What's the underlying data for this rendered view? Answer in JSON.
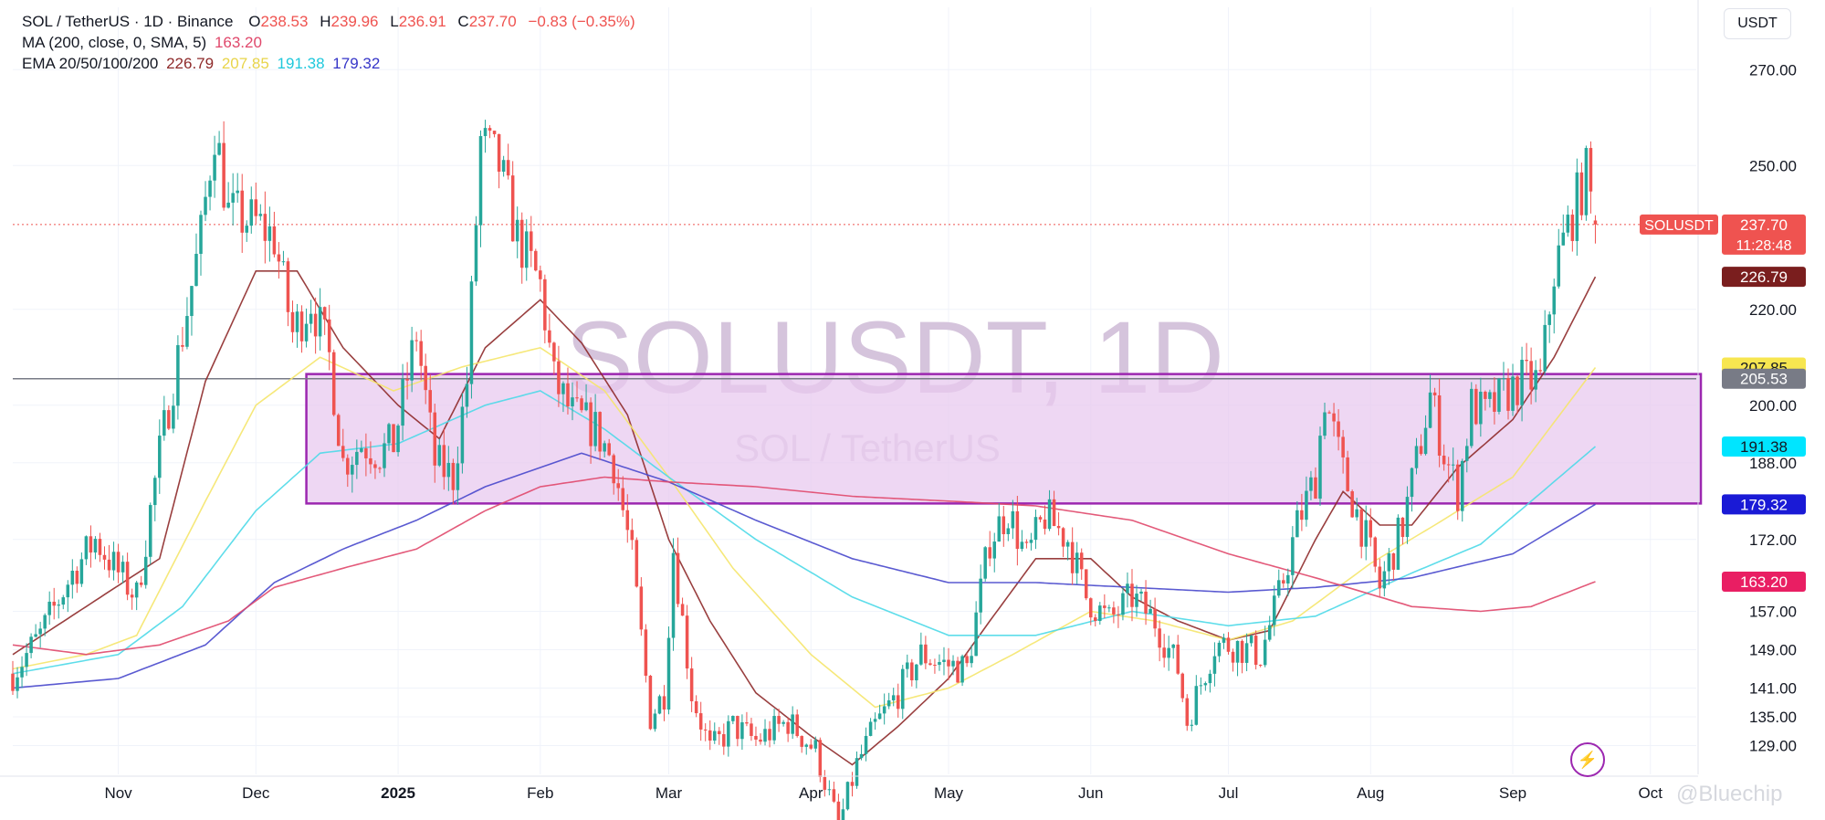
{
  "header": {
    "symbol": "SOL / TetherUS · 1D · Binance",
    "o_label": "O",
    "o": "238.53",
    "h_label": "H",
    "h": "239.96",
    "l_label": "L",
    "l": "236.91",
    "c_label": "C",
    "c": "237.70",
    "change": "−0.83 (−0.35%)",
    "ma_label": "MA (200, close, 0, SMA, 5)",
    "ma_value": "163.20",
    "ema_label": "EMA 20/50/100/200",
    "ema20": "226.79",
    "ema50": "207.85",
    "ema100": "191.38",
    "ema200": "179.32"
  },
  "unit": "USDT",
  "watermark": {
    "main": "SOLUSDT, 1D",
    "sub": "SOL / TetherUS"
  },
  "credit": "@Bluechip",
  "colors": {
    "up": "#26a69a",
    "down": "#ef5350",
    "ema20": "#8e2a2a",
    "ema50": "#f5e66b",
    "ema100": "#4dd9e8",
    "ema200": "#4848cc",
    "ma200": "#e0486b",
    "zone_fill": "#e8c9ef",
    "zone_border": "#9c27b0",
    "grid": "#f0f3fa"
  },
  "chart_data": {
    "type": "candlestick",
    "title": "SOL / TetherUS · 1D · Binance",
    "ylim": [
      123,
      283
    ],
    "y_ticks": [
      129,
      135,
      141,
      149,
      157,
      172,
      188,
      200,
      220,
      250,
      270
    ],
    "y_tick_labels": [
      "129.00",
      "135.00",
      "141.00",
      "149.00",
      "157.00",
      "172.00",
      "188.00",
      "200.00",
      "220.00",
      "250.00",
      "270.00"
    ],
    "x_labels": [
      {
        "date": "2024-11-01",
        "label": "Nov"
      },
      {
        "date": "2024-12-01",
        "label": "Dec"
      },
      {
        "date": "2025-01-01",
        "label": "2025"
      },
      {
        "date": "2025-02-01",
        "label": "Feb"
      },
      {
        "date": "2025-03-01",
        "label": "Mar"
      },
      {
        "date": "2025-04-01",
        "label": "Apr"
      },
      {
        "date": "2025-05-01",
        "label": "May"
      },
      {
        "date": "2025-06-01",
        "label": "Jun"
      },
      {
        "date": "2025-07-01",
        "label": "Jul"
      },
      {
        "date": "2025-08-01",
        "label": "Aug"
      },
      {
        "date": "2025-09-01",
        "label": "Sep"
      },
      {
        "date": "2025-10-01",
        "label": "Oct"
      }
    ],
    "x_start": "2024-10-09",
    "x_end": "2025-10-11",
    "last_date": "2025-09-19",
    "price_anchors": [
      [
        "2024-10-09",
        144
      ],
      [
        "2024-10-15",
        152
      ],
      [
        "2024-10-22",
        165
      ],
      [
        "2024-10-27",
        172
      ],
      [
        "2024-11-01",
        165
      ],
      [
        "2024-11-05",
        160
      ],
      [
        "2024-11-10",
        190
      ],
      [
        "2024-11-15",
        215
      ],
      [
        "2024-11-19",
        235
      ],
      [
        "2024-11-22",
        258
      ],
      [
        "2024-11-25",
        240
      ],
      [
        "2024-12-01",
        238
      ],
      [
        "2024-12-05",
        235
      ],
      [
        "2024-12-09",
        215
      ],
      [
        "2024-12-13",
        222
      ],
      [
        "2024-12-17",
        210
      ],
      [
        "2024-12-20",
        188
      ],
      [
        "2024-12-24",
        192
      ],
      [
        "2024-12-28",
        190
      ],
      [
        "2024-12-31",
        192
      ],
      [
        "2025-01-05",
        215
      ],
      [
        "2025-01-09",
        188
      ],
      [
        "2025-01-13",
        185
      ],
      [
        "2025-01-16",
        205
      ],
      [
        "2025-01-19",
        255
      ],
      [
        "2025-01-23",
        250
      ],
      [
        "2025-01-27",
        235
      ],
      [
        "2025-02-01",
        225
      ],
      [
        "2025-02-04",
        205
      ],
      [
        "2025-02-08",
        198
      ],
      [
        "2025-02-13",
        195
      ],
      [
        "2025-02-17",
        188
      ],
      [
        "2025-02-21",
        168
      ],
      [
        "2025-02-25",
        135
      ],
      [
        "2025-02-28",
        140
      ],
      [
        "2025-03-02",
        170
      ],
      [
        "2025-03-06",
        140
      ],
      [
        "2025-03-10",
        128
      ],
      [
        "2025-03-15",
        133
      ],
      [
        "2025-03-20",
        130
      ],
      [
        "2025-03-27",
        134
      ],
      [
        "2025-04-02",
        128
      ],
      [
        "2025-04-07",
        112
      ],
      [
        "2025-04-11",
        125
      ],
      [
        "2025-04-15",
        133
      ],
      [
        "2025-04-20",
        140
      ],
      [
        "2025-04-25",
        148
      ],
      [
        "2025-04-30",
        146
      ],
      [
        "2025-05-05",
        145
      ],
      [
        "2025-05-10",
        172
      ],
      [
        "2025-05-14",
        178
      ],
      [
        "2025-05-18",
        168
      ],
      [
        "2025-05-22",
        177
      ],
      [
        "2025-05-27",
        172
      ],
      [
        "2025-05-31",
        160
      ],
      [
        "2025-06-05",
        155
      ],
      [
        "2025-06-10",
        160
      ],
      [
        "2025-06-15",
        155
      ],
      [
        "2025-06-20",
        145
      ],
      [
        "2025-06-22",
        134
      ],
      [
        "2025-06-28",
        150
      ],
      [
        "2025-07-02",
        150
      ],
      [
        "2025-07-08",
        148
      ],
      [
        "2025-07-12",
        160
      ],
      [
        "2025-07-16",
        175
      ],
      [
        "2025-07-20",
        185
      ],
      [
        "2025-07-22",
        202
      ],
      [
        "2025-07-26",
        186
      ],
      [
        "2025-07-31",
        172
      ],
      [
        "2025-08-03",
        162
      ],
      [
        "2025-08-08",
        175
      ],
      [
        "2025-08-11",
        188
      ],
      [
        "2025-08-14",
        202
      ],
      [
        "2025-08-17",
        190
      ],
      [
        "2025-08-20",
        182
      ],
      [
        "2025-08-23",
        200
      ],
      [
        "2025-08-26",
        198
      ],
      [
        "2025-08-30",
        202
      ],
      [
        "2025-09-03",
        205
      ],
      [
        "2025-09-07",
        205
      ],
      [
        "2025-09-10",
        228
      ],
      [
        "2025-09-14",
        240
      ],
      [
        "2025-09-17",
        248
      ],
      [
        "2025-09-19",
        237.7
      ]
    ],
    "series": [
      {
        "name": "EMA 20",
        "value": 226.79,
        "anchors": [
          [
            "2024-10-09",
            148
          ],
          [
            "2024-10-25",
            158
          ],
          [
            "2024-11-10",
            168
          ],
          [
            "2024-11-20",
            205
          ],
          [
            "2024-12-01",
            228
          ],
          [
            "2024-12-10",
            228
          ],
          [
            "2024-12-20",
            212
          ],
          [
            "2025-01-01",
            200
          ],
          [
            "2025-01-10",
            193
          ],
          [
            "2025-01-20",
            212
          ],
          [
            "2025-02-01",
            222
          ],
          [
            "2025-02-10",
            213
          ],
          [
            "2025-02-20",
            198
          ],
          [
            "2025-03-01",
            172
          ],
          [
            "2025-03-10",
            155
          ],
          [
            "2025-03-20",
            140
          ],
          [
            "2025-04-01",
            131
          ],
          [
            "2025-04-10",
            125
          ],
          [
            "2025-04-20",
            133
          ],
          [
            "2025-05-01",
            143
          ],
          [
            "2025-05-10",
            155
          ],
          [
            "2025-05-20",
            168
          ],
          [
            "2025-06-01",
            168
          ],
          [
            "2025-06-10",
            160
          ],
          [
            "2025-06-20",
            155
          ],
          [
            "2025-07-01",
            151
          ],
          [
            "2025-07-10",
            153
          ],
          [
            "2025-07-20",
            172
          ],
          [
            "2025-07-26",
            182
          ],
          [
            "2025-08-03",
            175
          ],
          [
            "2025-08-10",
            175
          ],
          [
            "2025-08-20",
            187
          ],
          [
            "2025-09-01",
            197
          ],
          [
            "2025-09-10",
            210
          ],
          [
            "2025-09-19",
            226.79
          ]
        ]
      },
      {
        "name": "EMA 50",
        "value": 207.85,
        "anchors": [
          [
            "2024-10-09",
            145
          ],
          [
            "2024-10-25",
            148
          ],
          [
            "2024-11-05",
            152
          ],
          [
            "2024-11-20",
            180
          ],
          [
            "2024-12-01",
            200
          ],
          [
            "2024-12-15",
            210
          ],
          [
            "2024-12-31",
            203
          ],
          [
            "2025-01-15",
            208
          ],
          [
            "2025-02-01",
            212
          ],
          [
            "2025-02-15",
            203
          ],
          [
            "2025-03-01",
            185
          ],
          [
            "2025-03-15",
            166
          ],
          [
            "2025-04-01",
            148
          ],
          [
            "2025-04-15",
            137
          ],
          [
            "2025-05-01",
            141
          ],
          [
            "2025-05-15",
            148
          ],
          [
            "2025-06-01",
            157
          ],
          [
            "2025-06-15",
            155
          ],
          [
            "2025-07-01",
            151
          ],
          [
            "2025-07-15",
            155
          ],
          [
            "2025-08-01",
            167
          ],
          [
            "2025-08-15",
            175
          ],
          [
            "2025-09-01",
            185
          ],
          [
            "2025-09-19",
            207.85
          ]
        ]
      },
      {
        "name": "EMA 100",
        "value": 191.38,
        "anchors": [
          [
            "2024-10-09",
            144
          ],
          [
            "2024-11-01",
            148
          ],
          [
            "2024-11-15",
            158
          ],
          [
            "2024-12-01",
            178
          ],
          [
            "2024-12-15",
            190
          ],
          [
            "2025-01-01",
            192
          ],
          [
            "2025-01-20",
            200
          ],
          [
            "2025-02-01",
            203
          ],
          [
            "2025-02-15",
            195
          ],
          [
            "2025-03-01",
            185
          ],
          [
            "2025-03-20",
            172
          ],
          [
            "2025-04-10",
            160
          ],
          [
            "2025-05-01",
            152
          ],
          [
            "2025-05-20",
            152
          ],
          [
            "2025-06-10",
            157
          ],
          [
            "2025-07-01",
            154
          ],
          [
            "2025-07-20",
            156
          ],
          [
            "2025-08-10",
            165
          ],
          [
            "2025-08-25",
            171
          ],
          [
            "2025-09-19",
            191.38
          ]
        ]
      },
      {
        "name": "EMA 200",
        "value": 179.32,
        "anchors": [
          [
            "2024-10-09",
            141
          ],
          [
            "2024-11-01",
            143
          ],
          [
            "2024-11-20",
            150
          ],
          [
            "2024-12-05",
            163
          ],
          [
            "2024-12-20",
            170
          ],
          [
            "2025-01-05",
            176
          ],
          [
            "2025-01-20",
            183
          ],
          [
            "2025-02-10",
            190
          ],
          [
            "2025-03-01",
            184
          ],
          [
            "2025-03-20",
            176
          ],
          [
            "2025-04-10",
            168
          ],
          [
            "2025-05-01",
            163
          ],
          [
            "2025-05-20",
            163
          ],
          [
            "2025-06-10",
            162
          ],
          [
            "2025-07-01",
            161
          ],
          [
            "2025-07-20",
            162
          ],
          [
            "2025-08-10",
            164
          ],
          [
            "2025-09-01",
            169
          ],
          [
            "2025-09-19",
            179.32
          ]
        ]
      },
      {
        "name": "MA 200",
        "value": 163.2,
        "anchors": [
          [
            "2024-10-09",
            150
          ],
          [
            "2024-10-25",
            148
          ],
          [
            "2024-11-10",
            150
          ],
          [
            "2024-11-25",
            155
          ],
          [
            "2024-12-05",
            162
          ],
          [
            "2024-12-20",
            166
          ],
          [
            "2025-01-05",
            170
          ],
          [
            "2025-01-20",
            178
          ],
          [
            "2025-02-01",
            183
          ],
          [
            "2025-02-15",
            185
          ],
          [
            "2025-03-01",
            184
          ],
          [
            "2025-03-20",
            183
          ],
          [
            "2025-04-10",
            181
          ],
          [
            "2025-05-01",
            180
          ],
          [
            "2025-05-20",
            179
          ],
          [
            "2025-06-10",
            176
          ],
          [
            "2025-07-01",
            169
          ],
          [
            "2025-07-20",
            164
          ],
          [
            "2025-08-10",
            158
          ],
          [
            "2025-08-25",
            157
          ],
          [
            "2025-09-05",
            158
          ],
          [
            "2025-09-19",
            163.2
          ]
        ]
      }
    ],
    "zone": {
      "from": "2024-12-12",
      "to": "2025-10-12",
      "low": 179.5,
      "high": 206.5
    },
    "reference_line": 205.53,
    "price_line": 237.7,
    "price_labels": [
      {
        "name": "SOLUSDT",
        "price": 237.7,
        "text": "237.70",
        "sub": "11:28:48",
        "bg": "#ef5350",
        "fg": "#ffffff"
      },
      {
        "name": "EMA 20",
        "price": 226.79,
        "text": "226.79",
        "bg": "#7a1e1e",
        "fg": "#ffffff"
      },
      {
        "name": "EMA 50",
        "price": 207.85,
        "text": "207.85",
        "bg": "#f7e650",
        "fg": "#131722"
      },
      {
        "name": "Ref",
        "price": 205.53,
        "text": "205.53",
        "bg": "#787b86",
        "fg": "#ffffff"
      },
      {
        "name": "EMA 100",
        "price": 191.38,
        "text": "191.38",
        "bg": "#00e5ff",
        "fg": "#131722"
      },
      {
        "name": "EMA 200",
        "price": 179.32,
        "text": "179.32",
        "bg": "#1a1ad6",
        "fg": "#ffffff"
      },
      {
        "name": "MA 200",
        "price": 163.2,
        "text": "163.20",
        "bg": "#e91e63",
        "fg": "#ffffff"
      }
    ],
    "grid": true
  }
}
